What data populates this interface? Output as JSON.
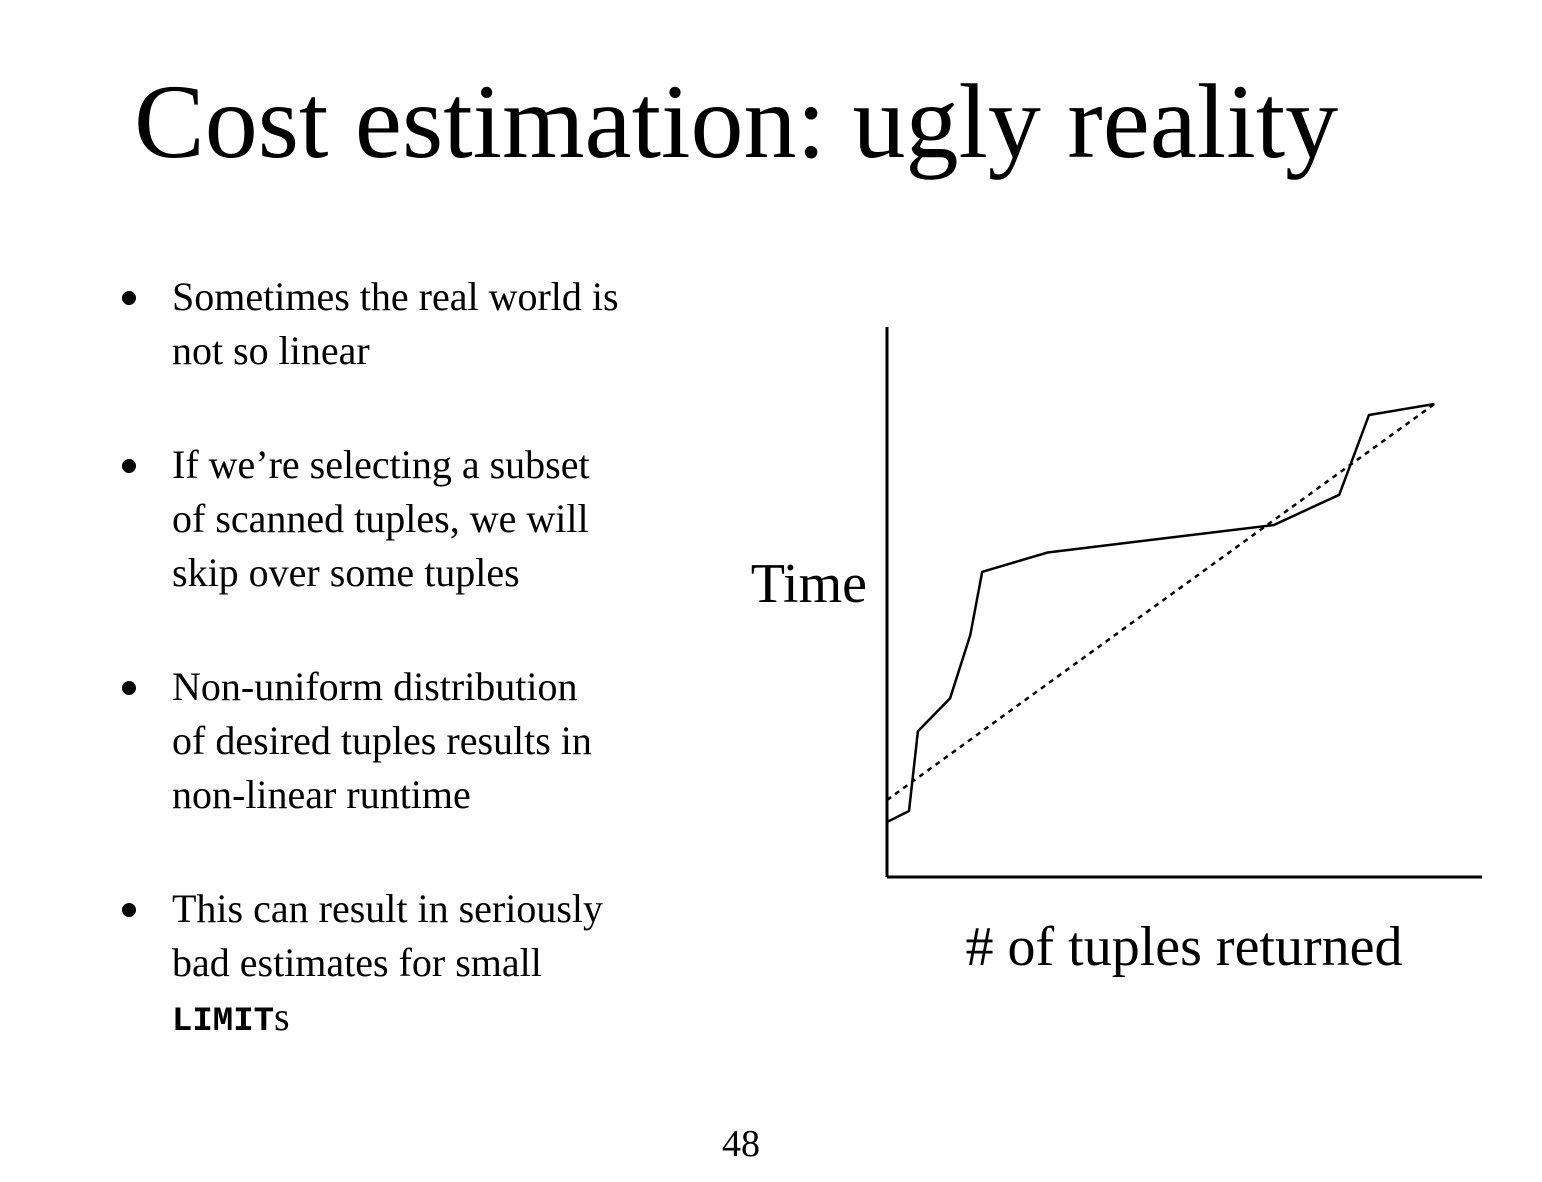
{
  "slide": {
    "title": "Cost estimation: ugly reality",
    "page_number": "48"
  },
  "bullets": [
    {
      "lines": [
        "Sometimes the real world is",
        "not so linear"
      ]
    },
    {
      "lines": [
        "If we’re selecting a subset",
        "of scanned tuples, we will",
        "skip over some tuples"
      ]
    },
    {
      "lines": [
        "Non-uniform distribution",
        "of desired tuples results in",
        "non-linear runtime"
      ]
    },
    {
      "lines": [
        "This can result in seriously",
        "bad estimates for small"
      ],
      "code": "LIMIT",
      "code_suffix": "s"
    }
  ],
  "chart_data": {
    "type": "line",
    "title": "",
    "xlabel": "# of tuples returned",
    "ylabel": "Time",
    "xlim": [
      0,
      100
    ],
    "ylim": [
      0,
      100
    ],
    "grid": false,
    "legend": "none",
    "ticks": false,
    "series": [
      {
        "style": "solid",
        "x": [
          0,
          3.7,
          5.2,
          10.6,
          14,
          16,
          27,
          65,
          76,
          81,
          92
        ],
        "y": [
          10,
          12,
          26.5,
          32.5,
          44,
          55.5,
          59,
          64,
          69.5,
          84,
          86
        ]
      },
      {
        "style": "dotted",
        "x": [
          0,
          92
        ],
        "y": [
          14,
          86
        ]
      }
    ]
  }
}
